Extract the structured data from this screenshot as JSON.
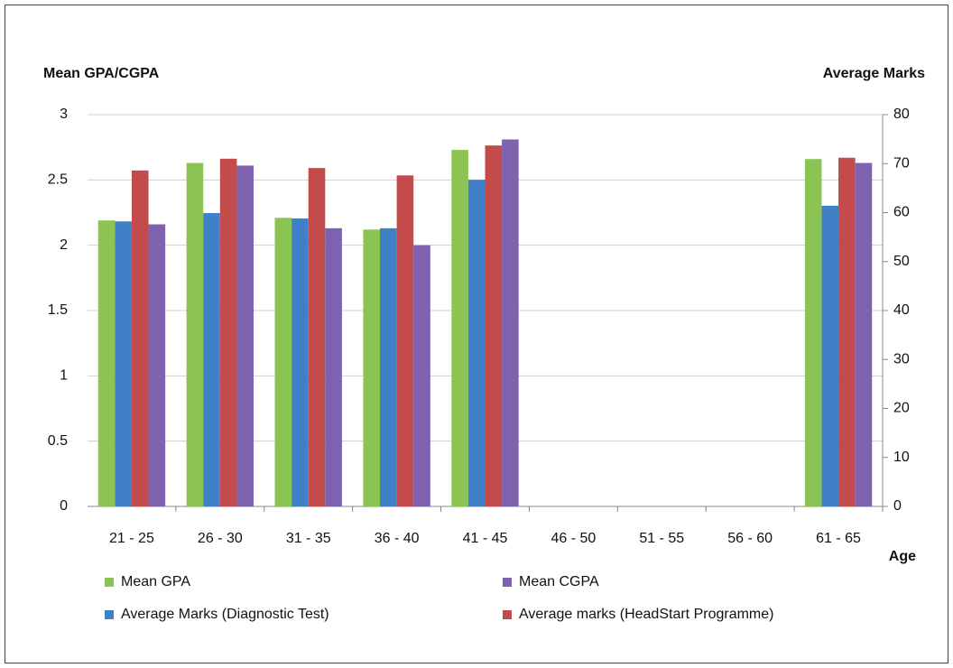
{
  "chart_data": {
    "type": "bar",
    "y_label": "Mean GPA/CGPA",
    "y2_label": "Average Marks",
    "x_label": "Age",
    "categories": [
      "21 - 25",
      "26 - 30",
      "31 - 35",
      "36 - 40",
      "41 - 45",
      "46 - 50",
      "51 - 55",
      "56 - 60",
      "61 - 65"
    ],
    "series": [
      {
        "name": "Mean GPA",
        "color": "#8cc453",
        "values": [
          2.19,
          2.63,
          2.21,
          2.12,
          2.73,
          null,
          null,
          null,
          2.66
        ]
      },
      {
        "name": "Average Marks (Diagnostic Test)",
        "color": "#3f80c8",
        "axis": "y2",
        "values": [
          58.2,
          59.9,
          58.8,
          56.8,
          66.7,
          null,
          null,
          null,
          61.4
        ]
      },
      {
        "name": "Average marks (HeadStart Programme)",
        "color": "#c44b4b",
        "axis": "y2",
        "values": [
          68.6,
          71.0,
          69.1,
          67.6,
          73.7,
          null,
          null,
          null,
          71.2
        ]
      },
      {
        "name": "Mean CGPA",
        "color": "#7e62b0",
        "values": [
          2.16,
          2.61,
          2.13,
          2.0,
          2.81,
          null,
          null,
          null,
          2.63
        ]
      }
    ],
    "ylim": [
      0,
      3
    ],
    "yticks": [
      0,
      0.5,
      1,
      1.5,
      2,
      2.5,
      3
    ],
    "y2lim": [
      0,
      80
    ],
    "y2ticks": [
      0,
      10,
      20,
      30,
      40,
      50,
      60,
      70,
      80
    ],
    "grid": true
  }
}
